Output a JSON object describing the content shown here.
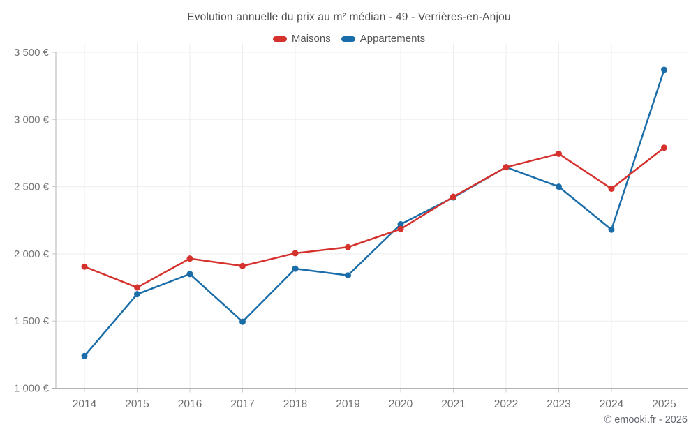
{
  "title": "Evolution annuelle du prix au m² médian - 49 - Verrières-en-Anjou",
  "watermark": "© emooki.fr - 2026",
  "colors": {
    "maisons": "#d5312d",
    "appartements": "#1a6da8",
    "grid": "#ededed",
    "axis": "#b3b3b3",
    "tick": "#cccccc",
    "tick_label": "#757575",
    "title_text": "#4d4d4d",
    "legend_text": "#555555",
    "watermark_text": "#63666f"
  },
  "chart_data": {
    "type": "line",
    "title": "Evolution annuelle du prix au m² médian - 49 - Verrières-en-Anjou",
    "x": [
      "2014",
      "2015",
      "2016",
      "2017",
      "2018",
      "2019",
      "2020",
      "2021",
      "2022",
      "2023",
      "2024",
      "2025"
    ],
    "series": [
      {
        "name": "Maisons",
        "color_key": "maisons",
        "values": [
          1905,
          1750,
          1965,
          1910,
          2005,
          2050,
          2185,
          2425,
          2645,
          2745,
          2485,
          2790
        ]
      },
      {
        "name": "Appartements",
        "color_key": "appartements",
        "values": [
          1240,
          1700,
          1850,
          1495,
          1890,
          1840,
          2220,
          2420,
          2645,
          2500,
          2180,
          3370
        ]
      }
    ],
    "xlabel": "",
    "ylabel": "",
    "ylim": [
      1000,
      3600
    ],
    "y_ticks": [
      1000,
      1500,
      2000,
      2500,
      3000,
      3500
    ],
    "y_tick_labels": [
      "1 000 €",
      "1 500 €",
      "2 000 €",
      "2 500 €",
      "3 000 €",
      "3 500 €"
    ],
    "grid": true,
    "legend_position": "top",
    "marker": "circle"
  }
}
